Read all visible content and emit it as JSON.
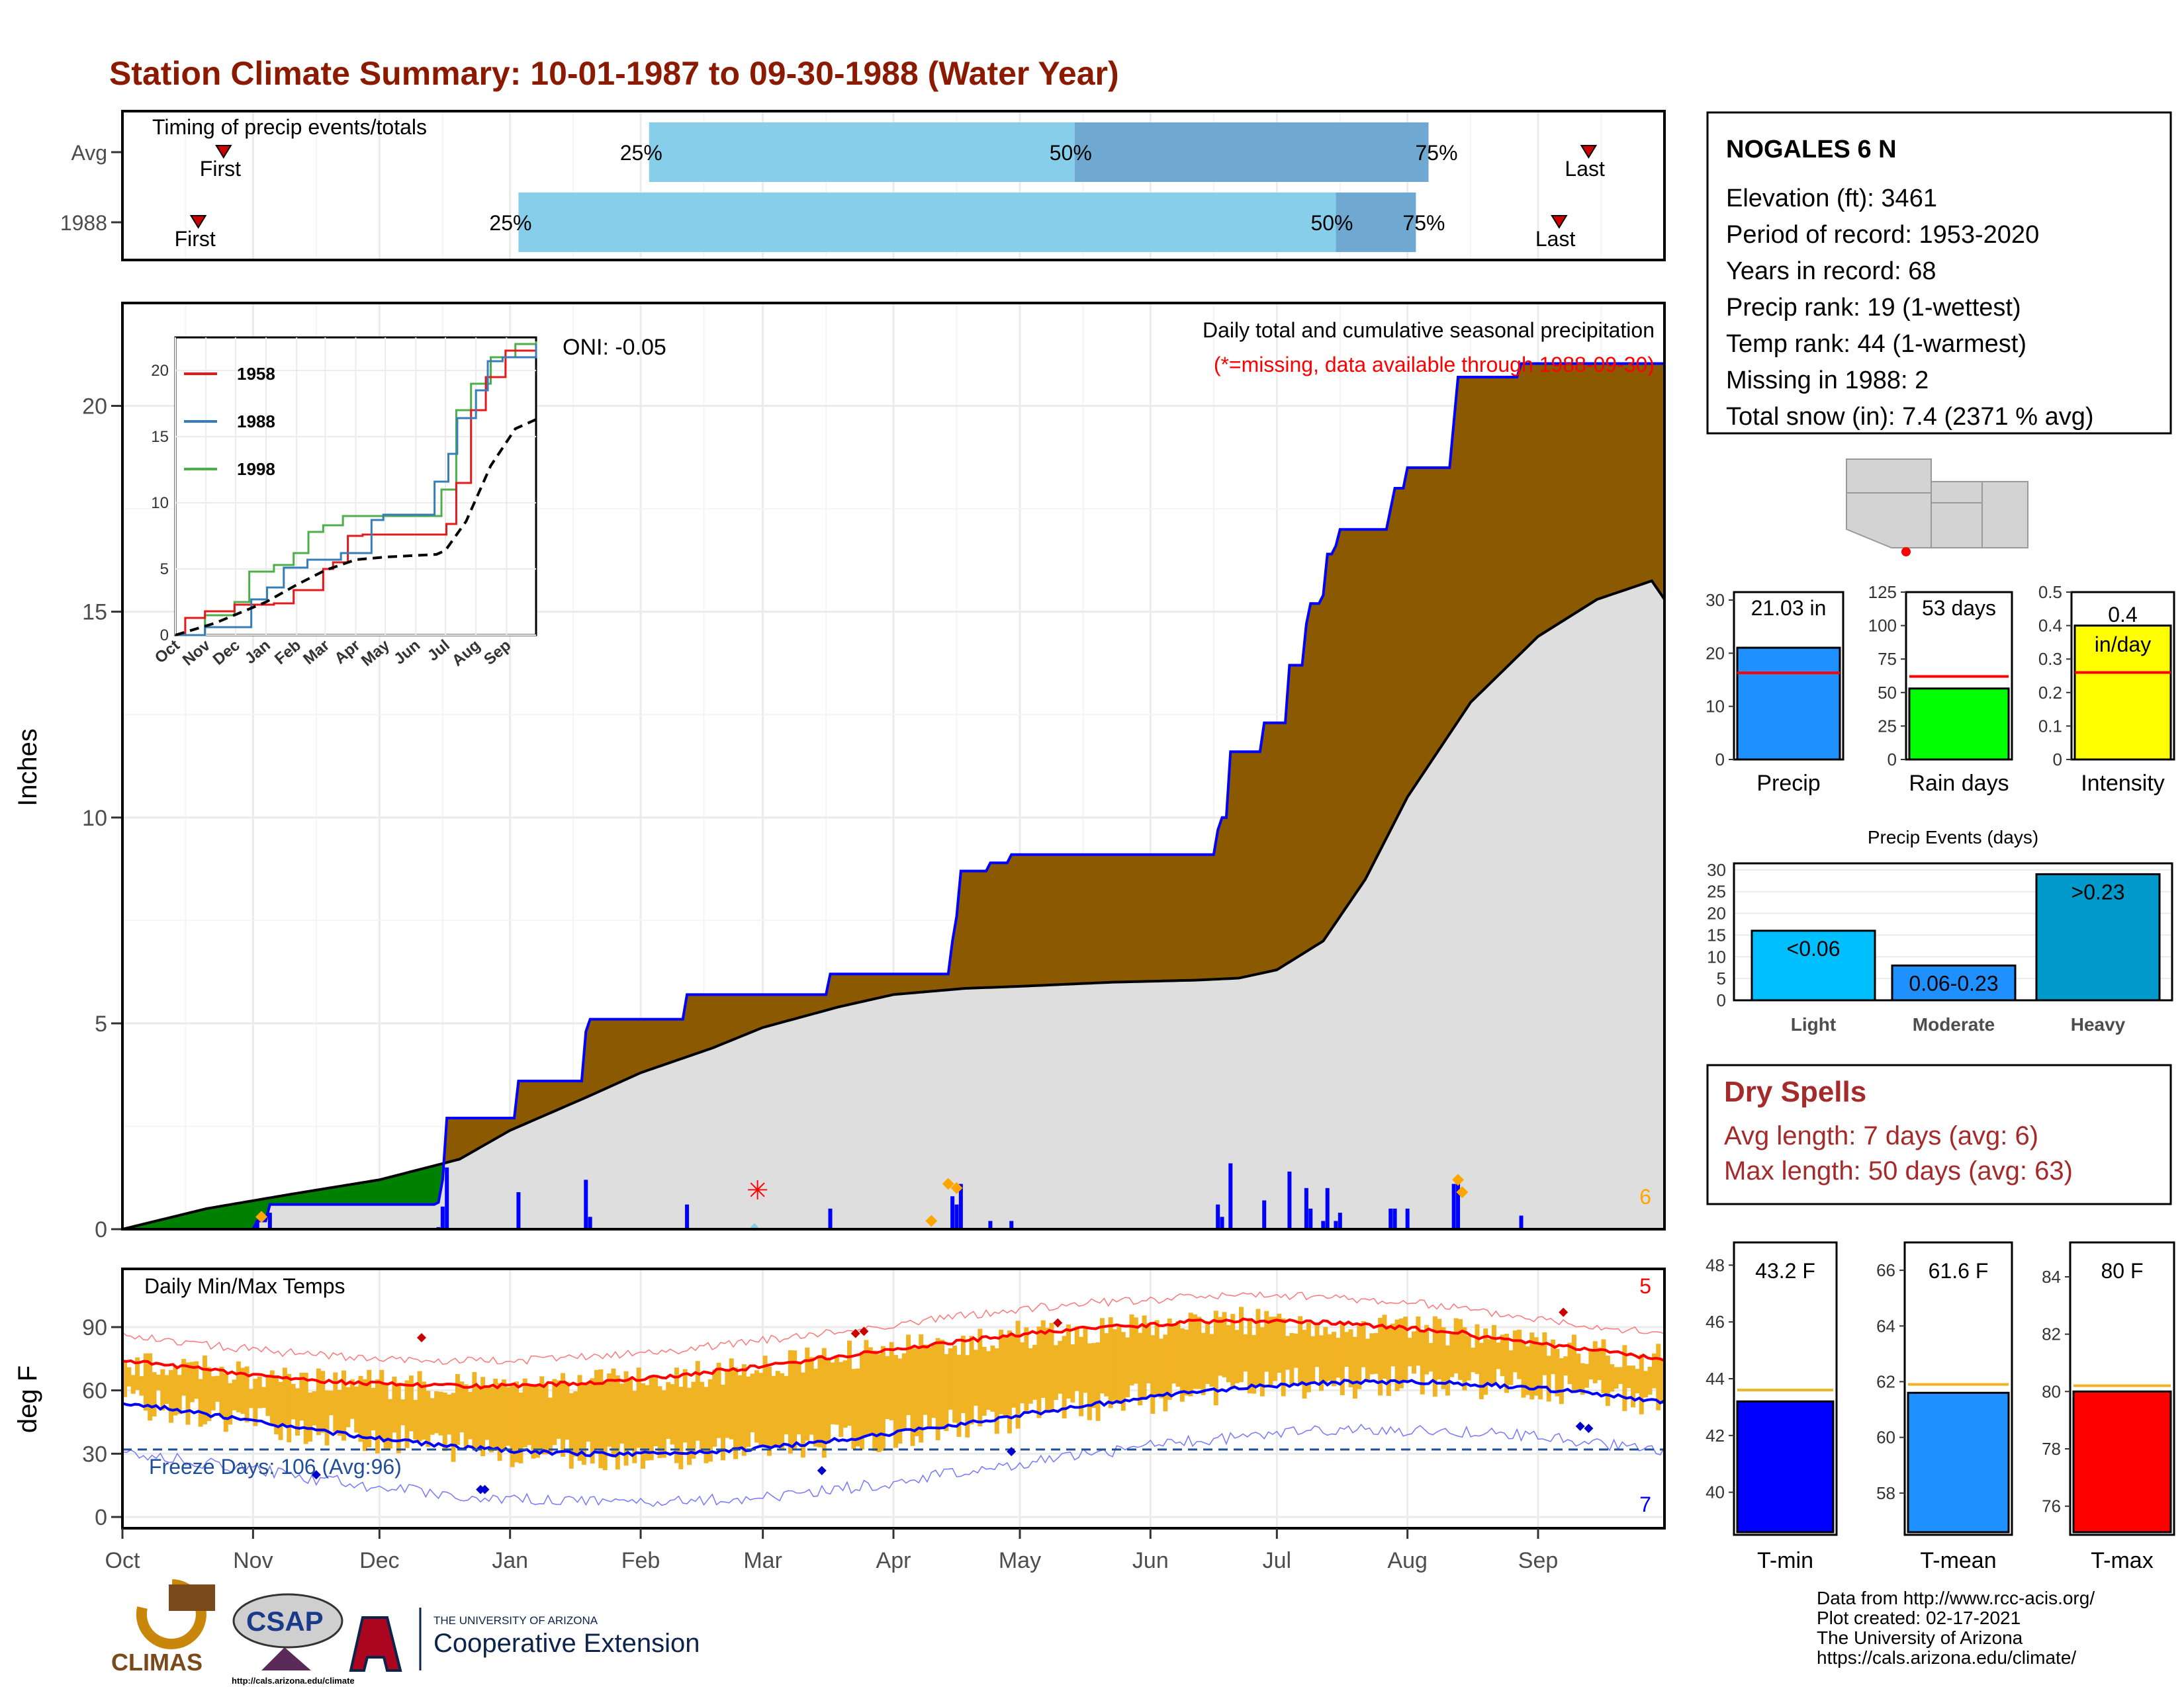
{
  "title": "Station Climate Summary: 10-01-1987 to 09-30-1988 (Water Year)",
  "months": [
    "Oct",
    "Nov",
    "Dec",
    "Jan",
    "Feb",
    "Mar",
    "Apr",
    "May",
    "Jun",
    "Jul",
    "Aug",
    "Sep"
  ],
  "timing": {
    "label": "Timing of precip events/totals",
    "rows": [
      {
        "name": "Avg",
        "first_day": 24,
        "last_day": 348,
        "p25": 125,
        "p50": 226,
        "p75": 310
      },
      {
        "name": "1988",
        "first_day": 18,
        "last_day": 341,
        "p25": 94,
        "p50": 288,
        "p75": 307
      }
    ],
    "first_label": "First",
    "last_label": "Last",
    "p25_label": "25%",
    "p50_label": "50%",
    "p75_label": "75%"
  },
  "station": {
    "name": "NOGALES 6 N",
    "lines": [
      "Elevation (ft): 3461",
      "Period of record: 1953-2020",
      "Years in record: 68",
      "Precip rank: 19 (1-wettest)",
      "Temp rank: 44 (1-warmest)",
      "Missing in 1988: 2",
      "Total snow (in): 7.4 (2371 % avg)"
    ]
  },
  "precip_panel": {
    "ylabel": "Inches",
    "note1": "Daily total and cumulative seasonal precipitation",
    "note2": "(*=missing, data available through 1988-09-30)",
    "oni": "ONI: -0.05",
    "corner_count": "6",
    "ylim": [
      0,
      22.5
    ],
    "yticks": [
      0,
      5,
      10,
      15,
      20
    ]
  },
  "inset": {
    "series_names": [
      "1958",
      "1988",
      "1998"
    ],
    "colors": [
      "#e31a1c",
      "#377eb8",
      "#4daf4a"
    ],
    "yticks": [
      0,
      5,
      10,
      15,
      20
    ],
    "xticks": [
      "Oct",
      "Nov",
      "Dec",
      "Jan",
      "Feb",
      "Mar",
      "Apr",
      "May",
      "Jun",
      "Jul",
      "Aug",
      "Sep"
    ]
  },
  "bars3": [
    {
      "label": "Precip",
      "value_label": "21.03 in",
      "value": 21.03,
      "avg": 16.3,
      "max": 31.5,
      "ticks": [
        0,
        10,
        20,
        30
      ],
      "color": "#1e90ff"
    },
    {
      "label": "Rain days",
      "value_label": "53 days",
      "value": 53,
      "avg": 62,
      "max": 125,
      "ticks": [
        0,
        25,
        50,
        75,
        100,
        125
      ],
      "color": "#00ff00"
    },
    {
      "label": "Intensity",
      "value_label": "0.4",
      "value_label2": "in/day",
      "value": 0.4,
      "avg": 0.26,
      "max": 0.5,
      "ticks": [
        0.0,
        0.1,
        0.2,
        0.3,
        0.4,
        0.5
      ],
      "color": "#ffff00"
    }
  ],
  "events": {
    "title": "Precip Events (days)",
    "categories": [
      "Light",
      "Moderate",
      "Heavy"
    ],
    "values": [
      16,
      8,
      29
    ],
    "labels": [
      "<0.06",
      "0.06-0.23",
      ">0.23"
    ],
    "colors": [
      "#00bfff",
      "#1e90ff",
      "#0099cc"
    ],
    "yticks": [
      0,
      5,
      10,
      15,
      20,
      25,
      30
    ]
  },
  "dry": {
    "title": "Dry Spells",
    "avg": "Avg length: 7 days (avg: 6)",
    "max": "Max length: 50 days (avg: 63)"
  },
  "temp_panel": {
    "ylabel": "deg F",
    "title": "Daily Min/Max Temps",
    "freeze": "Freeze Days: 106 (Avg:96)",
    "max_count": "5",
    "min_count": "7",
    "yticks": [
      0,
      30,
      60,
      90
    ]
  },
  "temps3": [
    {
      "label": "T-min",
      "value_label": "43.2 F",
      "value": 43.2,
      "avg": 43.6,
      "ymin": 38.5,
      "ymax": 48.8,
      "ticks": [
        40,
        42,
        44,
        46,
        48
      ],
      "color": "#0000ff"
    },
    {
      "label": "T-mean",
      "value_label": "61.6 F",
      "value": 61.6,
      "avg": 61.9,
      "ymin": 56.5,
      "ymax": 67.0,
      "ticks": [
        58,
        60,
        62,
        64,
        66
      ],
      "color": "#1e90ff"
    },
    {
      "label": "T-max",
      "value_label": "80 F",
      "value": 80.0,
      "avg": 80.2,
      "ymin": 75.0,
      "ymax": 85.2,
      "ticks": [
        76,
        78,
        80,
        82,
        84
      ],
      "color": "#ff0000"
    }
  ],
  "credits": [
    "Data from http://www.rcc-acis.org/",
    "Plot created: 02-17-2021",
    "The University of Arizona",
    "https://cals.arizona.edu/climate/"
  ],
  "logos": {
    "climas": "CLIMAS",
    "csap": "CSAP",
    "csap_url": "http://cals.arizona.edu/climate",
    "ua_small": "THE UNIVERSITY OF ARIZONA",
    "ua_big": "Cooperative Extension"
  }
}
